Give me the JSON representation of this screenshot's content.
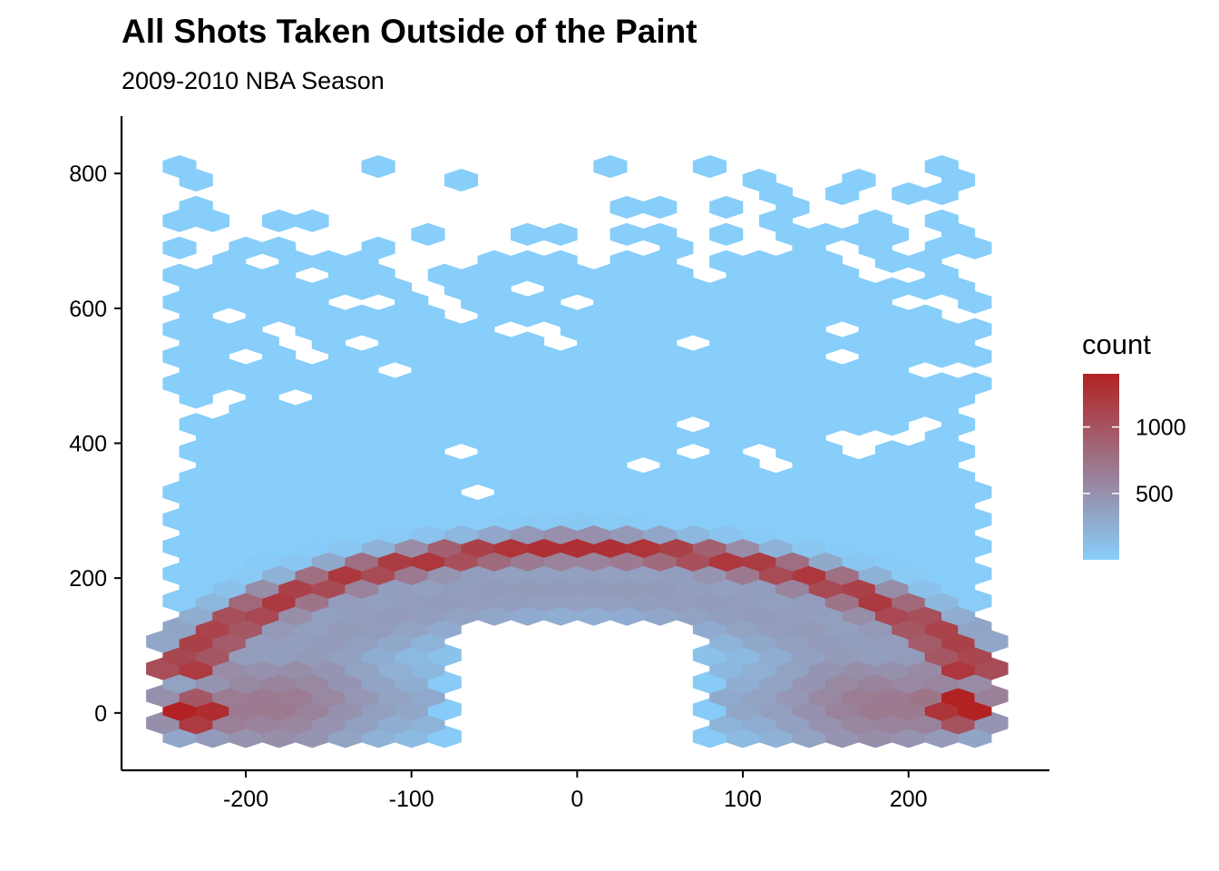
{
  "title": "All Shots Taken Outside of the Paint",
  "subtitle": "2009-2010 NBA Season",
  "chart_data": {
    "type": "heatmap",
    "geometry": "hexbin",
    "title": "All Shots Taken Outside of the Paint",
    "subtitle": "2009-2010 NBA Season",
    "xlabel": "",
    "ylabel": "",
    "xlim": [
      -275,
      285
    ],
    "ylim": [
      -85,
      885
    ],
    "x_ticks": [
      -200,
      -100,
      0,
      100,
      200
    ],
    "y_ticks": [
      0,
      200,
      400,
      600,
      800
    ],
    "grid": false,
    "legend": {
      "title": "count",
      "position": "right",
      "breaks": [
        500,
        1000
      ],
      "range": [
        1,
        1400
      ],
      "low_color": "#87cefa",
      "high_color": "#b22222"
    },
    "hex_bin_width": 20,
    "paint_excluded": {
      "x": [
        -80,
        80
      ],
      "y": [
        -50,
        140
      ]
    },
    "counts_description": "Approximate shot counts per hexagonal bin; every bin inside the court region has at least one shot",
    "hotspots": [
      {
        "x": -230,
        "y": 0,
        "count": 1400
      },
      {
        "x": -240,
        "y": 10,
        "count": 1150
      },
      {
        "x": 230,
        "y": 0,
        "count": 1350
      },
      {
        "x": 230,
        "y": 25,
        "count": 1250
      },
      {
        "x": 0,
        "y": 252,
        "count": 1250
      },
      {
        "x": -150,
        "y": 200,
        "count": 1200
      },
      {
        "x": 150,
        "y": 200,
        "count": 1150
      },
      {
        "x": -170,
        "y": 190,
        "count": 1000
      },
      {
        "x": 120,
        "y": 220,
        "count": 1050
      }
    ]
  }
}
